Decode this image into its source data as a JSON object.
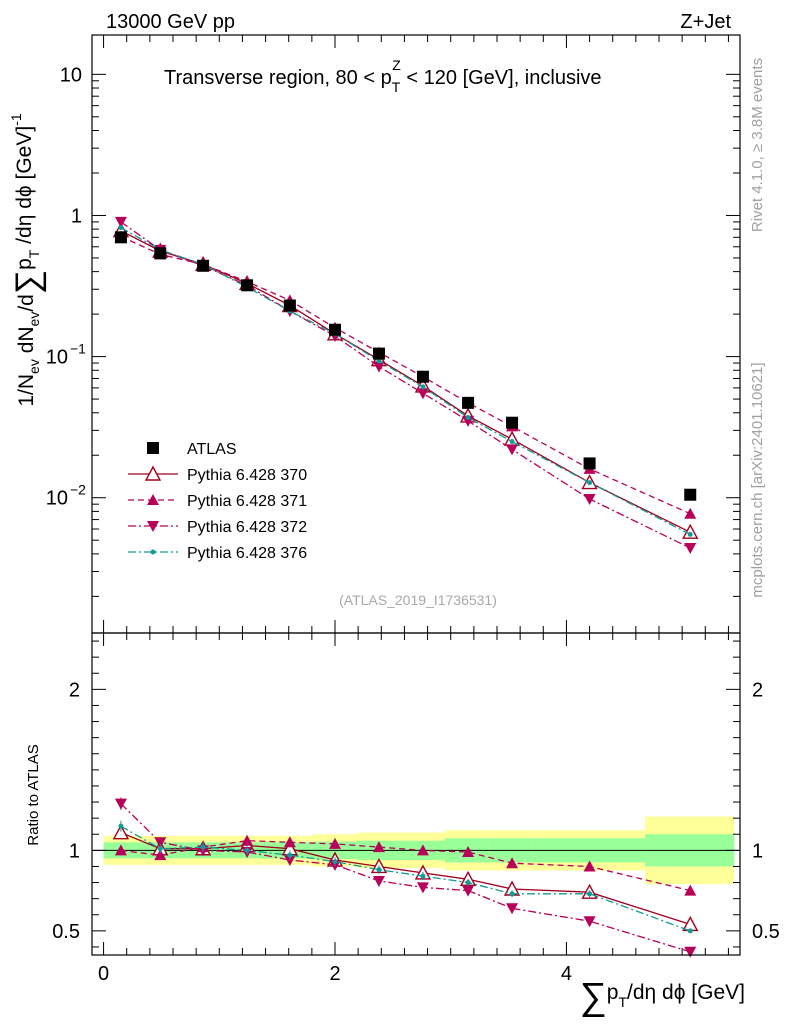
{
  "header": {
    "left_label": "13000 GeV pp",
    "right_label": "Z+Jet"
  },
  "side_labels": {
    "rivet": "Rivet 4.1.0, ≥ 3.8M events",
    "mcplots": "mcplots.cern.ch [arXiv:2401.10621]"
  },
  "chart_data": {
    "type": "scatter",
    "title": "Transverse region, 80 < p_T^Z < 120 [GeV], inclusive",
    "title_parts": {
      "a": "Transverse region, 80 < p",
      "sup": "Z",
      "sub": "T",
      "b": " < 120 [GeV], inclusive"
    },
    "analysis_id": "(ATLAS_2019_I1736531)",
    "xlabel": "∑p_T/dη dϕ [GeV]",
    "xlabel_parts": {
      "sigma": "∑",
      "p": "p",
      "sub": "T",
      "rest": "/dη dϕ [GeV]"
    },
    "ylabel": "1/N_ev dN_ev/d∑p_T/dη dϕ [GeV]^-1",
    "ylabel_parts": {
      "a": "1/N",
      "a_sub": "ev",
      "b": " dN",
      "b_sub": "ev",
      "c": "/d",
      "sigma": "∑",
      "p": "p",
      "p_sub": "T",
      "d": " /dη dϕ  [GeV]",
      "sup": "-1"
    },
    "ratio_ylabel": "Ratio to ATLAS",
    "x_ticks": [
      {
        "v": 0,
        "label": "0"
      },
      {
        "v": 2,
        "label": "2"
      },
      {
        "v": 4,
        "label": "4"
      }
    ],
    "xlim": [
      -0.1,
      5.5
    ],
    "ylim": [
      0.0011,
      19
    ],
    "y_ticks": [
      {
        "v": 10,
        "label": "10",
        "exp": ""
      },
      {
        "v": 1,
        "label": "1",
        "exp": ""
      },
      {
        "v": 0.1,
        "label": "10",
        "exp": "−1"
      },
      {
        "v": 0.01,
        "label": "10",
        "exp": "−2"
      }
    ],
    "ratio_ylim": [
      0.35,
      2.35
    ],
    "ratio_ticks": [
      {
        "v": 0.5,
        "label": "0.5"
      },
      {
        "v": 1,
        "label": "1"
      },
      {
        "v": 2,
        "label": "2"
      }
    ],
    "x": [
      0.15,
      0.49,
      0.86,
      1.24,
      1.61,
      2.0,
      2.38,
      2.76,
      3.15,
      3.53,
      4.2,
      5.07
    ],
    "bin_edges": [
      0.0,
      0.33,
      0.67,
      1.05,
      1.43,
      1.81,
      2.19,
      2.57,
      2.95,
      3.33,
      3.71,
      4.68,
      5.45
    ],
    "band_inner": [
      0.05,
      0.05,
      0.05,
      0.05,
      0.05,
      0.055,
      0.06,
      0.06,
      0.075,
      0.075,
      0.075,
      0.1
    ],
    "band_outer": [
      0.09,
      0.09,
      0.09,
      0.09,
      0.09,
      0.1,
      0.11,
      0.11,
      0.125,
      0.125,
      0.125,
      0.21
    ],
    "series": [
      {
        "name": "ATLAS",
        "color": "#000000",
        "marker": "square",
        "line": "none",
        "values": [
          0.7,
          0.54,
          0.44,
          0.32,
          0.23,
          0.155,
          0.105,
          0.072,
          0.047,
          0.034,
          0.0175,
          0.0105
        ],
        "ratio": [
          1,
          1,
          1,
          1,
          1,
          1,
          1,
          1,
          1,
          1,
          1,
          1
        ]
      },
      {
        "name": "Pythia 6.428 370",
        "color": "#a0001e",
        "marker": "triangle-up-open",
        "line": "solid",
        "values": [
          0.78,
          0.56,
          0.45,
          0.33,
          0.23,
          0.145,
          0.095,
          0.062,
          0.038,
          0.026,
          0.0128,
          0.0057
        ],
        "ratio": [
          1.11,
          1.01,
          1.01,
          1.03,
          1.01,
          0.94,
          0.9,
          0.86,
          0.82,
          0.76,
          0.74,
          0.54
        ]
      },
      {
        "name": "Pythia 6.428 371",
        "color": "#b8005a",
        "marker": "triangle-up",
        "line": "dashed",
        "values": [
          0.71,
          0.53,
          0.45,
          0.34,
          0.25,
          0.16,
          0.107,
          0.072,
          0.047,
          0.032,
          0.016,
          0.0077
        ],
        "ratio": [
          1.0,
          0.97,
          1.02,
          1.06,
          1.05,
          1.04,
          1.02,
          1.0,
          0.99,
          0.92,
          0.9,
          0.75
        ]
      },
      {
        "name": "Pythia 6.428 372",
        "color": "#b8005a",
        "marker": "triangle-down",
        "line": "dashdot",
        "values": [
          0.9,
          0.57,
          0.44,
          0.32,
          0.21,
          0.14,
          0.085,
          0.055,
          0.035,
          0.022,
          0.0098,
          0.0044
        ],
        "ratio": [
          1.29,
          1.05,
          1.0,
          0.99,
          0.94,
          0.91,
          0.81,
          0.77,
          0.75,
          0.64,
          0.56,
          0.37
        ]
      },
      {
        "name": "Pythia 6.428 376",
        "color": "#139a96",
        "marker": "dot",
        "line": "dashdot",
        "values": [
          0.82,
          0.57,
          0.45,
          0.31,
          0.21,
          0.145,
          0.093,
          0.061,
          0.037,
          0.025,
          0.0128,
          0.0055
        ],
        "ratio": [
          1.15,
          1.01,
          1.02,
          1.0,
          0.97,
          0.93,
          0.88,
          0.84,
          0.8,
          0.73,
          0.73,
          0.5
        ]
      }
    ]
  }
}
